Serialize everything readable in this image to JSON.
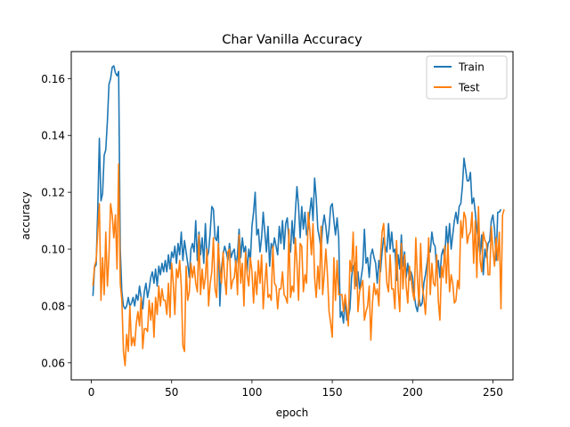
{
  "chart_data": {
    "type": "line",
    "title": "Char Vanilla Accuracy",
    "xlabel": "epoch",
    "ylabel": "accuracy",
    "xlim": [
      -12.5,
      262.5
    ],
    "ylim": [
      0.054,
      0.1695
    ],
    "xticks": [
      0,
      50,
      100,
      150,
      200,
      250
    ],
    "yticks": [
      0.06,
      0.08,
      0.1,
      0.12,
      0.14,
      0.16
    ],
    "ytick_labels": [
      "0.06",
      "0.08",
      "0.10",
      "0.12",
      "0.14",
      "0.16"
    ],
    "legend_position": "top-right",
    "grid": false,
    "series": [
      {
        "name": "Train",
        "color": "#1f77b4",
        "values": [
          0.0835,
          0.0935,
          0.0945,
          0.114,
          0.139,
          0.117,
          0.1195,
          0.133,
          0.135,
          0.145,
          0.158,
          0.16,
          0.164,
          0.1645,
          0.162,
          0.161,
          0.1625,
          0.1,
          0.085,
          0.08,
          0.079,
          0.08,
          0.083,
          0.08,
          0.081,
          0.083,
          0.08,
          0.084,
          0.082,
          0.087,
          0.083,
          0.079,
          0.085,
          0.088,
          0.083,
          0.086,
          0.09,
          0.092,
          0.088,
          0.093,
          0.087,
          0.094,
          0.091,
          0.095,
          0.092,
          0.096,
          0.092,
          0.098,
          0.093,
          0.099,
          0.097,
          0.101,
          0.095,
          0.102,
          0.098,
          0.106,
          0.096,
          0.103,
          0.099,
          0.095,
          0.09,
          0.1,
          0.102,
          0.099,
          0.11,
          0.096,
          0.106,
          0.098,
          0.104,
          0.095,
          0.109,
          0.097,
          0.099,
          0.106,
          0.115,
          0.114,
          0.104,
          0.103,
          0.108,
          0.08,
          0.093,
          0.098,
          0.101,
          0.099,
          0.096,
          0.102,
          0.097,
          0.099,
          0.1,
          0.094,
          0.098,
          0.107,
          0.097,
          0.104,
          0.099,
          0.101,
          0.092,
          0.1,
          0.096,
          0.108,
          0.113,
          0.12,
          0.105,
          0.107,
          0.099,
          0.104,
          0.113,
          0.106,
          0.099,
          0.108,
          0.094,
          0.102,
          0.1,
          0.104,
          0.101,
          0.098,
          0.108,
          0.102,
          0.11,
          0.1,
          0.109,
          0.111,
          0.103,
          0.099,
          0.11,
          0.102,
          0.113,
          0.122,
          0.115,
          0.104,
          0.115,
          0.107,
          0.113,
          0.105,
          0.107,
          0.113,
          0.118,
          0.11,
          0.125,
          0.118,
          0.107,
          0.104,
          0.1,
          0.108,
          0.112,
          0.108,
          0.102,
          0.107,
          0.115,
          0.116,
          0.11,
          0.105,
          0.111,
          0.104,
          0.076,
          0.078,
          0.074,
          0.083,
          0.075,
          0.076,
          0.079,
          0.09,
          0.094,
          0.095,
          0.087,
          0.092,
          0.086,
          0.09,
          0.094,
          0.107,
          0.095,
          0.097,
          0.09,
          0.098,
          0.1,
          0.097,
          0.095,
          0.088,
          0.096,
          0.092,
          0.099,
          0.104,
          0.101,
          0.099,
          0.109,
          0.1,
          0.106,
          0.099,
          0.1,
          0.089,
          0.098,
          0.093,
          0.105,
          0.094,
          0.099,
          0.09,
          0.095,
          0.089,
          0.092,
          0.09,
          0.084,
          0.08,
          0.078,
          0.083,
          0.08,
          0.081,
          0.088,
          0.091,
          0.095,
          0.1,
          0.099,
          0.106,
          0.102,
          0.101,
          0.092,
          0.096,
          0.09,
          0.098,
          0.1,
          0.096,
          0.108,
          0.101,
          0.109,
          0.1,
          0.105,
          0.11,
          0.113,
          0.109,
          0.115,
          0.116,
          0.122,
          0.132,
          0.128,
          0.124,
          0.124,
          0.127,
          0.116,
          0.118,
          0.113,
          0.107,
          0.103,
          0.098,
          0.105,
          0.091,
          0.1,
          0.097,
          0.102,
          0.103,
          0.11,
          0.112,
          0.107,
          0.096,
          0.113,
          0.113,
          0.114
        ]
      },
      {
        "name": "Test",
        "color": "#ff7f0e",
        "values": [
          0.087,
          0.094,
          0.096,
          0.106,
          0.116,
          0.082,
          0.097,
          0.084,
          0.106,
          0.087,
          0.098,
          0.116,
          0.112,
          0.104,
          0.112,
          0.093,
          0.13,
          0.088,
          0.082,
          0.064,
          0.059,
          0.07,
          0.064,
          0.08,
          0.066,
          0.069,
          0.066,
          0.074,
          0.078,
          0.073,
          0.083,
          0.065,
          0.072,
          0.072,
          0.071,
          0.082,
          0.075,
          0.081,
          0.069,
          0.083,
          0.077,
          0.087,
          0.08,
          0.086,
          0.082,
          0.082,
          0.077,
          0.088,
          0.076,
          0.095,
          0.088,
          0.077,
          0.093,
          0.09,
          0.096,
          0.087,
          0.066,
          0.064,
          0.094,
          0.082,
          0.085,
          0.095,
          0.09,
          0.094,
          0.088,
          0.085,
          0.105,
          0.084,
          0.093,
          0.086,
          0.09,
          0.1,
          0.08,
          0.088,
          0.092,
          0.104,
          0.086,
          0.083,
          0.102,
          0.093,
          0.088,
          0.099,
          0.09,
          0.084,
          0.099,
          0.1,
          0.086,
          0.089,
          0.09,
          0.096,
          0.084,
          0.105,
          0.088,
          0.095,
          0.08,
          0.099,
          0.091,
          0.087,
          0.097,
          0.092,
          0.081,
          0.092,
          0.084,
          0.096,
          0.088,
          0.098,
          0.079,
          0.088,
          0.095,
          0.083,
          0.084,
          0.082,
          0.101,
          0.088,
          0.087,
          0.079,
          0.086,
          0.086,
          0.092,
          0.084,
          0.083,
          0.081,
          0.107,
          0.083,
          0.087,
          0.085,
          0.104,
          0.095,
          0.082,
          0.102,
          0.101,
          0.085,
          0.091,
          0.088,
          0.113,
          0.107,
          0.098,
          0.109,
          0.09,
          0.083,
          0.094,
          0.086,
          0.108,
          0.084,
          0.091,
          0.1,
          0.091,
          0.078,
          0.074,
          0.069,
          0.097,
          0.082,
          0.096,
          0.084,
          0.084,
          0.084,
          0.078,
          0.084,
          0.079,
          0.073,
          0.096,
          0.092,
          0.106,
          0.086,
          0.101,
          0.078,
          0.085,
          0.087,
          0.089,
          0.075,
          0.078,
          0.08,
          0.087,
          0.068,
          0.081,
          0.088,
          0.084,
          0.086,
          0.08,
          0.097,
          0.106,
          0.109,
          0.098,
          0.088,
          0.085,
          0.098,
          0.086,
          0.086,
          0.079,
          0.103,
          0.086,
          0.078,
          0.102,
          0.086,
          0.098,
          0.087,
          0.081,
          0.094,
          0.09,
          0.085,
          0.082,
          0.104,
          0.09,
          0.08,
          0.102,
          0.087,
          0.083,
          0.077,
          0.089,
          0.104,
          0.084,
          0.095,
          0.088,
          0.087,
          0.098,
          0.082,
          0.075,
          0.094,
          0.09,
          0.101,
          0.088,
          0.102,
          0.085,
          0.091,
          0.088,
          0.081,
          0.082,
          0.089,
          0.086,
          0.11,
          0.104,
          0.113,
          0.111,
          0.102,
          0.105,
          0.106,
          0.113,
          0.095,
          0.11,
          0.09,
          0.115,
          0.096,
          0.092,
          0.106,
          0.103,
          0.102,
          0.091,
          0.091,
          0.108,
          0.1,
          0.094,
          0.104,
          0.096,
          0.106,
          0.079,
          0.112,
          0.114
        ]
      }
    ]
  }
}
